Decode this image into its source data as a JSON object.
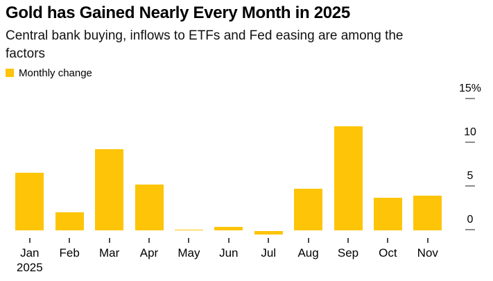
{
  "header": {
    "title": "Gold has Gained Nearly Every Month in 2025",
    "subtitle_line1": "Central bank buying, inflows to ETFs and Fed easing are among the",
    "subtitle_line2": "factors"
  },
  "legend": {
    "label": "Monthly change",
    "swatch_color": "#FDC408"
  },
  "chart_data": {
    "type": "bar",
    "title": "Gold has Gained Nearly Every Month in 2025",
    "subtitle": "Central bank buying, inflows to ETFs and Fed easing are among the factors",
    "series_name": "Monthly change",
    "categories": [
      "Jan",
      "Feb",
      "Mar",
      "Apr",
      "May",
      "Jun",
      "Jul",
      "Aug",
      "Sep",
      "Oct",
      "Nov"
    ],
    "values": [
      6.6,
      2.1,
      9.3,
      5.3,
      0.1,
      0.4,
      -0.4,
      4.8,
      11.9,
      3.8,
      4.0
    ],
    "x_year_label": "2025",
    "unit": "%",
    "xlabel": "",
    "ylabel": "",
    "y_ticks": [
      {
        "value": 0,
        "label": "0"
      },
      {
        "value": 5,
        "label": "5"
      },
      {
        "value": 10,
        "label": "10"
      },
      {
        "value": 15,
        "label": "15%"
      }
    ],
    "ylim": [
      -1,
      16
    ],
    "bar_color": "#FDC408",
    "grid": false,
    "legend_position": "top-left",
    "axis_side": "right"
  },
  "colors": {
    "bar": "#FDC408",
    "y_tick_dash": "#8c8c8c",
    "x_tick_dash": "#4a4a4a",
    "background": "#ffffff",
    "text": "#000000"
  }
}
